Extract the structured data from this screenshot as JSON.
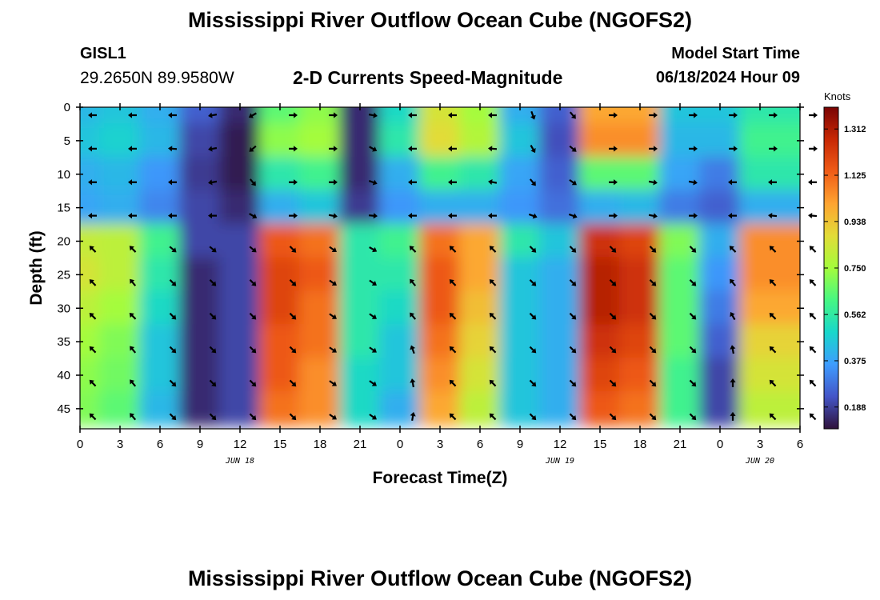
{
  "header": {
    "title": "Mississippi River Outflow Ocean Cube (NGOFS2)",
    "station_id": "GISL1",
    "coordinates": "29.2650N  89.9580W",
    "subtitle": "2-D Currents Speed-Magnitude",
    "model_start_label": "Model Start Time",
    "model_start_value": "06/18/2024 Hour 09"
  },
  "footer": {
    "title": "Mississippi River Outflow Ocean Cube (NGOFS2)"
  },
  "chart_data": {
    "type": "heatmap",
    "title": "2-D Currents Speed-Magnitude",
    "xlabel": "Forecast Time(Z)",
    "ylabel": "Depth (ft)",
    "x_range_hours": [
      0,
      54
    ],
    "y_range_ft": [
      0,
      48
    ],
    "y_inverted": true,
    "x_ticks": [
      "0",
      "3",
      "6",
      "9",
      "12",
      "15",
      "18",
      "21",
      "0",
      "3",
      "6",
      "9",
      "12",
      "15",
      "18",
      "21",
      "0",
      "3",
      "6"
    ],
    "y_ticks": [
      "0",
      "5",
      "10",
      "15",
      "20",
      "25",
      "30",
      "35",
      "40",
      "45"
    ],
    "date_labels": [
      {
        "label": "JUN 18",
        "hour": 12
      },
      {
        "label": "JUN 19",
        "hour": 36
      },
      {
        "label": "JUN 20",
        "hour": 51
      }
    ],
    "colorbar": {
      "unit": "Knots",
      "min": 0.1,
      "max": 1.4,
      "ticks": [
        "1.312",
        "1.125",
        "0.938",
        "0.750",
        "0.562",
        "0.375",
        "0.188"
      ],
      "tick_values": [
        1.312,
        1.125,
        0.938,
        0.75,
        0.562,
        0.375,
        0.188
      ]
    },
    "speed_grid": {
      "hours": [
        0,
        3,
        6,
        9,
        12,
        15,
        18,
        21,
        24,
        27,
        30,
        33,
        36,
        39,
        42,
        45,
        48,
        51,
        54
      ],
      "depths_ft": [
        0,
        5,
        10,
        15,
        20,
        25,
        30,
        35,
        40,
        45
      ],
      "knots": [
        [
          0.42,
          0.45,
          0.4,
          0.25,
          0.15,
          0.65,
          0.72,
          0.15,
          0.5,
          0.85,
          0.75,
          0.4,
          0.25,
          1.0,
          1.0,
          0.45,
          0.45,
          0.55,
          0.55
        ],
        [
          0.45,
          0.48,
          0.42,
          0.2,
          0.12,
          0.72,
          0.75,
          0.15,
          0.55,
          0.88,
          0.78,
          0.45,
          0.22,
          1.05,
          1.05,
          0.42,
          0.42,
          0.6,
          0.6
        ],
        [
          0.4,
          0.42,
          0.35,
          0.18,
          0.12,
          0.55,
          0.6,
          0.15,
          0.4,
          0.6,
          0.55,
          0.38,
          0.25,
          0.65,
          0.65,
          0.38,
          0.3,
          0.55,
          0.55
        ],
        [
          0.38,
          0.4,
          0.32,
          0.2,
          0.15,
          0.4,
          0.45,
          0.18,
          0.35,
          0.4,
          0.4,
          0.35,
          0.28,
          0.4,
          0.42,
          0.3,
          0.25,
          0.4,
          0.4
        ],
        [
          0.82,
          0.8,
          0.6,
          0.2,
          0.2,
          1.15,
          1.1,
          0.55,
          0.6,
          1.1,
          1.0,
          0.55,
          0.45,
          1.25,
          1.2,
          0.7,
          0.4,
          1.05,
          1.05
        ],
        [
          0.85,
          0.8,
          0.55,
          0.15,
          0.2,
          1.2,
          1.15,
          0.55,
          0.55,
          1.15,
          1.0,
          0.45,
          0.4,
          1.3,
          1.25,
          0.65,
          0.35,
          1.05,
          1.05
        ],
        [
          0.8,
          0.75,
          0.5,
          0.15,
          0.2,
          1.2,
          1.1,
          0.55,
          0.5,
          1.15,
          0.95,
          0.45,
          0.4,
          1.3,
          1.25,
          0.65,
          0.3,
          1.0,
          1.0
        ],
        [
          0.75,
          0.7,
          0.45,
          0.15,
          0.2,
          1.15,
          1.1,
          0.55,
          0.45,
          1.1,
          0.9,
          0.45,
          0.4,
          1.25,
          1.2,
          0.65,
          0.25,
          0.9,
          0.9
        ],
        [
          0.72,
          0.68,
          0.45,
          0.15,
          0.2,
          1.15,
          1.05,
          0.5,
          0.45,
          1.05,
          0.85,
          0.45,
          0.4,
          1.2,
          1.15,
          0.6,
          0.2,
          0.85,
          0.85
        ],
        [
          0.7,
          0.65,
          0.42,
          0.15,
          0.2,
          1.1,
          1.05,
          0.5,
          0.4,
          1.0,
          0.8,
          0.45,
          0.4,
          1.15,
          1.1,
          0.6,
          0.2,
          0.8,
          0.8
        ]
      ],
      "direction_deg": [
        [
          270,
          270,
          270,
          260,
          240,
          90,
          90,
          100,
          270,
          270,
          270,
          160,
          140,
          90,
          90,
          90,
          90,
          90,
          90
        ],
        [
          270,
          270,
          275,
          260,
          230,
          90,
          90,
          120,
          270,
          270,
          275,
          150,
          130,
          90,
          90,
          90,
          90,
          90,
          90
        ],
        [
          270,
          270,
          270,
          260,
          140,
          90,
          90,
          110,
          270,
          270,
          280,
          140,
          125,
          90,
          100,
          100,
          270,
          270,
          270
        ],
        [
          270,
          270,
          270,
          270,
          120,
          90,
          100,
          95,
          270,
          270,
          270,
          110,
          110,
          90,
          100,
          90,
          270,
          275,
          275
        ],
        [
          315,
          315,
          130,
          130,
          130,
          135,
          125,
          120,
          315,
          315,
          315,
          135,
          135,
          135,
          135,
          135,
          315,
          315,
          315
        ],
        [
          315,
          320,
          135,
          135,
          135,
          135,
          125,
          125,
          320,
          315,
          315,
          135,
          135,
          135,
          135,
          135,
          320,
          315,
          315
        ],
        [
          315,
          315,
          135,
          135,
          135,
          135,
          125,
          125,
          320,
          315,
          315,
          135,
          135,
          135,
          135,
          135,
          330,
          315,
          315
        ],
        [
          315,
          320,
          135,
          135,
          135,
          135,
          125,
          125,
          340,
          315,
          315,
          135,
          135,
          135,
          135,
          135,
          350,
          315,
          315
        ],
        [
          315,
          320,
          135,
          135,
          135,
          135,
          125,
          125,
          350,
          315,
          315,
          135,
          135,
          135,
          135,
          135,
          0,
          315,
          315
        ],
        [
          315,
          320,
          135,
          135,
          135,
          135,
          125,
          125,
          10,
          315,
          315,
          135,
          135,
          135,
          135,
          135,
          0,
          315,
          315
        ]
      ]
    }
  }
}
